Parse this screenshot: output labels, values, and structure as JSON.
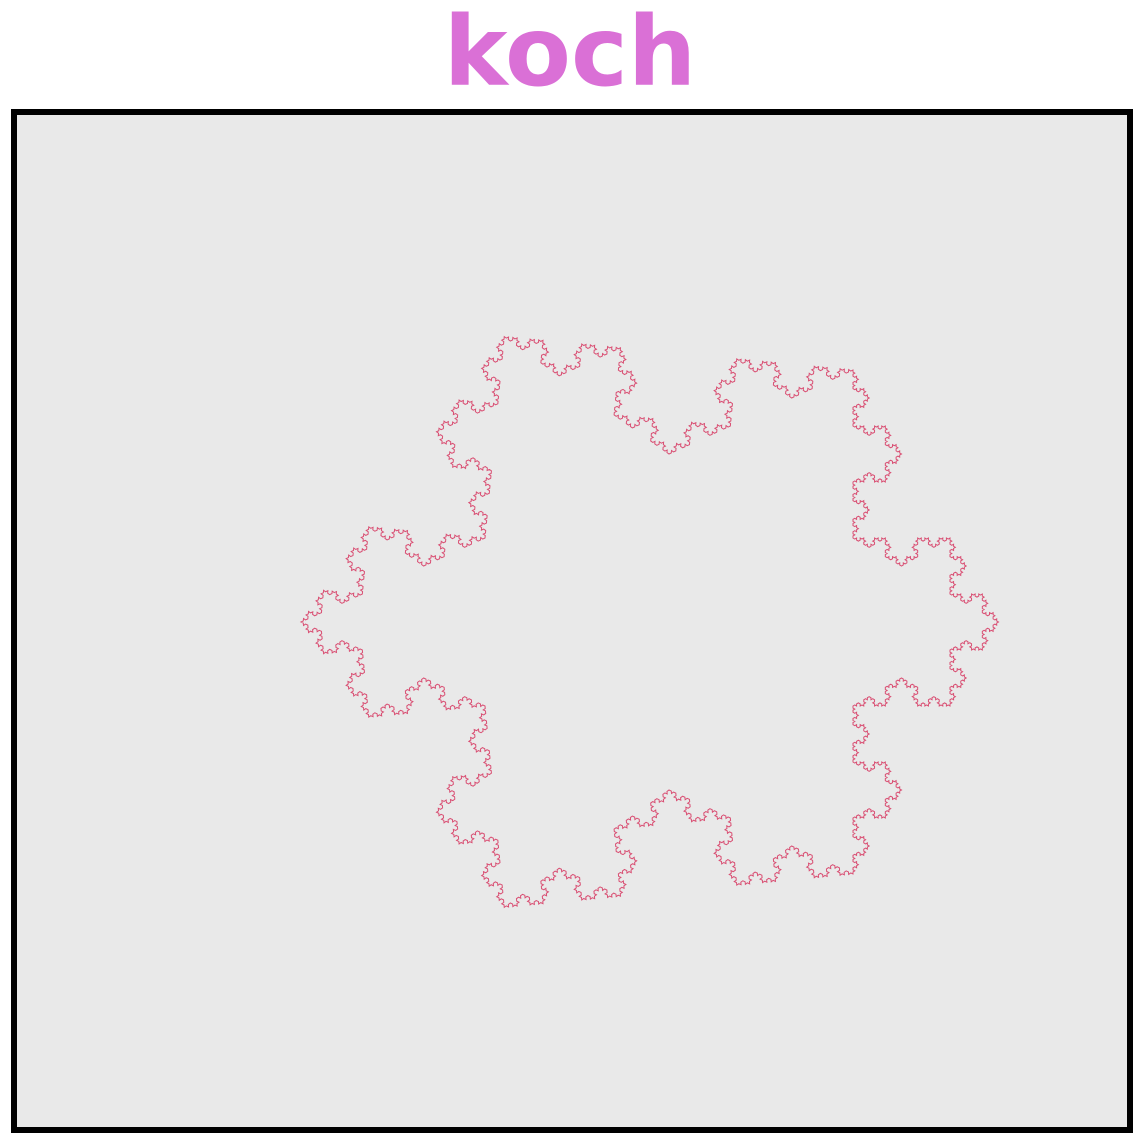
{
  "title": "koch",
  "colors": {
    "title": "#da70d6",
    "panel_background": "#e9e9e9",
    "frame_border": "#000000",
    "curve_stroke": "#d94f73"
  },
  "figure": {
    "shape": "Koch snowflake",
    "iterations": 5
  }
}
